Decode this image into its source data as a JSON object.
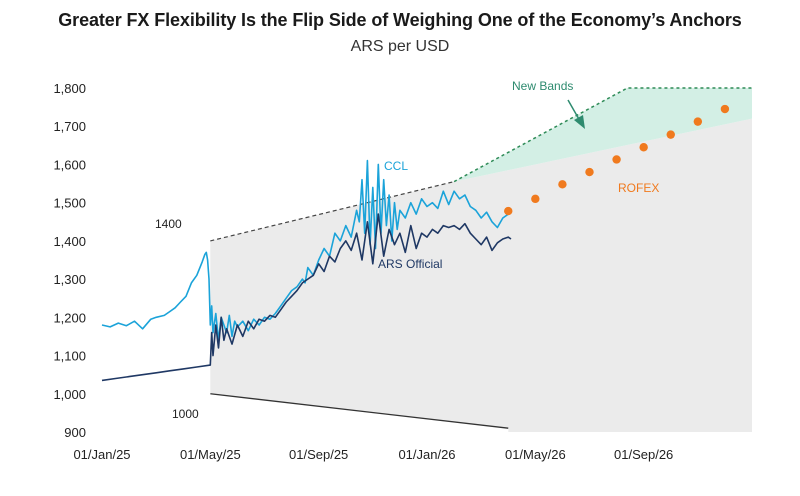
{
  "chart_data": {
    "type": "line",
    "title": "Greater FX Flexibility Is the Flip Side of Weighing One of the Economy’s Anchors",
    "subtitle": "ARS per USD",
    "xlabel": "",
    "ylabel": "ARS per USD",
    "x_ticks": [
      "01/Jan/25",
      "01/May/25",
      "01/Sep/25",
      "01/Jan/26",
      "01/May/26",
      "01/Sep/26"
    ],
    "y_ticks": [
      "900",
      "1,000",
      "1,100",
      "1,200",
      "1,300",
      "1,400",
      "1,500",
      "1,600",
      "1,700",
      "1,800"
    ],
    "ylim": [
      900,
      1800
    ],
    "xlim_months": [
      0,
      24
    ],
    "series": [
      {
        "name": "CCL",
        "color": "#1ba3d9",
        "points": [
          [
            0,
            1180
          ],
          [
            0.3,
            1175
          ],
          [
            0.6,
            1185
          ],
          [
            0.9,
            1178
          ],
          [
            1.2,
            1190
          ],
          [
            1.5,
            1170
          ],
          [
            1.8,
            1195
          ],
          [
            2.0,
            1200
          ],
          [
            2.3,
            1205
          ],
          [
            2.5,
            1215
          ],
          [
            2.7,
            1225
          ],
          [
            2.9,
            1240
          ],
          [
            3.1,
            1255
          ],
          [
            3.3,
            1290
          ],
          [
            3.5,
            1310
          ],
          [
            3.7,
            1345
          ],
          [
            3.8,
            1365
          ],
          [
            3.85,
            1370
          ],
          [
            3.9,
            1350
          ],
          [
            3.95,
            1300
          ],
          [
            4.0,
            1180
          ],
          [
            4.05,
            1230
          ],
          [
            4.1,
            1160
          ],
          [
            4.2,
            1210
          ],
          [
            4.3,
            1140
          ],
          [
            4.4,
            1200
          ],
          [
            4.5,
            1180
          ],
          [
            4.6,
            1160
          ],
          [
            4.7,
            1205
          ],
          [
            4.8,
            1150
          ],
          [
            4.9,
            1190
          ],
          [
            5.0,
            1175
          ],
          [
            5.2,
            1190
          ],
          [
            5.4,
            1165
          ],
          [
            5.6,
            1195
          ],
          [
            5.8,
            1180
          ],
          [
            6.0,
            1200
          ],
          [
            6.2,
            1195
          ],
          [
            6.4,
            1210
          ],
          [
            6.6,
            1230
          ],
          [
            6.8,
            1250
          ],
          [
            7.0,
            1270
          ],
          [
            7.2,
            1280
          ],
          [
            7.4,
            1300
          ],
          [
            7.5,
            1290
          ],
          [
            7.6,
            1330
          ],
          [
            7.8,
            1310
          ],
          [
            8.0,
            1350
          ],
          [
            8.2,
            1380
          ],
          [
            8.4,
            1360
          ],
          [
            8.6,
            1420
          ],
          [
            8.8,
            1400
          ],
          [
            9.0,
            1440
          ],
          [
            9.2,
            1410
          ],
          [
            9.4,
            1480
          ],
          [
            9.5,
            1450
          ],
          [
            9.6,
            1560
          ],
          [
            9.7,
            1420
          ],
          [
            9.8,
            1610
          ],
          [
            9.9,
            1390
          ],
          [
            10.0,
            1540
          ],
          [
            10.1,
            1380
          ],
          [
            10.2,
            1600
          ],
          [
            10.3,
            1420
          ],
          [
            10.4,
            1560
          ],
          [
            10.5,
            1440
          ],
          [
            10.6,
            1520
          ],
          [
            10.7,
            1400
          ],
          [
            10.8,
            1500
          ],
          [
            10.9,
            1430
          ],
          [
            11.0,
            1480
          ],
          [
            11.2,
            1460
          ],
          [
            11.4,
            1500
          ],
          [
            11.6,
            1470
          ],
          [
            11.8,
            1510
          ],
          [
            12.0,
            1490
          ],
          [
            12.2,
            1500
          ],
          [
            12.4,
            1485
          ],
          [
            12.6,
            1530
          ],
          [
            12.8,
            1495
          ],
          [
            13.0,
            1530
          ],
          [
            13.2,
            1510
          ],
          [
            13.4,
            1520
          ],
          [
            13.6,
            1490
          ],
          [
            13.8,
            1480
          ],
          [
            14.0,
            1460
          ],
          [
            14.2,
            1475
          ],
          [
            14.4,
            1450
          ],
          [
            14.6,
            1435
          ],
          [
            14.8,
            1460
          ],
          [
            15.0,
            1470
          ],
          [
            15.1,
            1480
          ]
        ]
      },
      {
        "name": "ARS Official",
        "color": "#1f3864",
        "points": [
          [
            0,
            1035
          ],
          [
            0.5,
            1040
          ],
          [
            1.0,
            1045
          ],
          [
            1.5,
            1050
          ],
          [
            2.0,
            1055
          ],
          [
            2.5,
            1060
          ],
          [
            3.0,
            1065
          ],
          [
            3.5,
            1070
          ],
          [
            4.0,
            1075
          ],
          [
            4.05,
            1160
          ],
          [
            4.1,
            1100
          ],
          [
            4.2,
            1180
          ],
          [
            4.3,
            1120
          ],
          [
            4.4,
            1200
          ],
          [
            4.5,
            1140
          ],
          [
            4.6,
            1170
          ],
          [
            4.8,
            1130
          ],
          [
            5.0,
            1180
          ],
          [
            5.2,
            1150
          ],
          [
            5.4,
            1190
          ],
          [
            5.6,
            1170
          ],
          [
            5.8,
            1195
          ],
          [
            6.0,
            1190
          ],
          [
            6.2,
            1205
          ],
          [
            6.4,
            1200
          ],
          [
            6.6,
            1220
          ],
          [
            6.8,
            1240
          ],
          [
            7.0,
            1255
          ],
          [
            7.2,
            1270
          ],
          [
            7.4,
            1290
          ],
          [
            7.6,
            1300
          ],
          [
            7.8,
            1310
          ],
          [
            8.0,
            1340
          ],
          [
            8.2,
            1320
          ],
          [
            8.4,
            1360
          ],
          [
            8.6,
            1345
          ],
          [
            8.8,
            1380
          ],
          [
            9.0,
            1400
          ],
          [
            9.2,
            1375
          ],
          [
            9.4,
            1420
          ],
          [
            9.6,
            1350
          ],
          [
            9.8,
            1450
          ],
          [
            10.0,
            1340
          ],
          [
            10.2,
            1470
          ],
          [
            10.4,
            1360
          ],
          [
            10.6,
            1430
          ],
          [
            10.8,
            1390
          ],
          [
            11.0,
            1420
          ],
          [
            11.2,
            1370
          ],
          [
            11.4,
            1440
          ],
          [
            11.6,
            1380
          ],
          [
            11.8,
            1420
          ],
          [
            12.0,
            1410
          ],
          [
            12.2,
            1430
          ],
          [
            12.4,
            1420
          ],
          [
            12.6,
            1440
          ],
          [
            12.8,
            1435
          ],
          [
            13.0,
            1440
          ],
          [
            13.2,
            1430
          ],
          [
            13.4,
            1445
          ],
          [
            13.6,
            1420
          ],
          [
            13.8,
            1405
          ],
          [
            14.0,
            1390
          ],
          [
            14.2,
            1410
          ],
          [
            14.4,
            1375
          ],
          [
            14.6,
            1395
          ],
          [
            14.8,
            1405
          ],
          [
            15.0,
            1410
          ],
          [
            15.1,
            1405
          ]
        ]
      },
      {
        "name": "ROFEX",
        "color": "#f07a1e",
        "points": [
          [
            15.0,
            1478
          ],
          [
            16.0,
            1510
          ],
          [
            17.0,
            1548
          ],
          [
            18.0,
            1580
          ],
          [
            19.0,
            1613
          ],
          [
            20.0,
            1645
          ],
          [
            21.0,
            1678
          ],
          [
            22.0,
            1712
          ],
          [
            23.0,
            1745
          ]
        ]
      }
    ],
    "bands": {
      "old_upper": [
        [
          4.0,
          1400
        ],
        [
          13.0,
          1555
        ]
      ],
      "old_lower": [
        [
          4.0,
          1000
        ],
        [
          15.0,
          910
        ]
      ],
      "new_upper": [
        [
          13.0,
          1555
        ],
        [
          19.4,
          1800
        ],
        [
          24.0,
          1800
        ]
      ],
      "new_lower_edge": [
        [
          13.0,
          1555
        ],
        [
          24.0,
          1720
        ]
      ]
    },
    "annotations": {
      "ccl_label": "CCL",
      "official_label": "ARS Official",
      "rofex_label": "ROFEX",
      "new_bands_label": "New Bands",
      "upper_start_label": "1400",
      "lower_start_label": "1000"
    },
    "colors": {
      "band_fill": "#ebebeb",
      "new_band_fill": "#d3efe5",
      "new_bands_text": "#2e8b6f",
      "rofex_text": "#f07a1e",
      "ccl_text": "#1ba3d9",
      "official_text": "#1f3864"
    }
  }
}
